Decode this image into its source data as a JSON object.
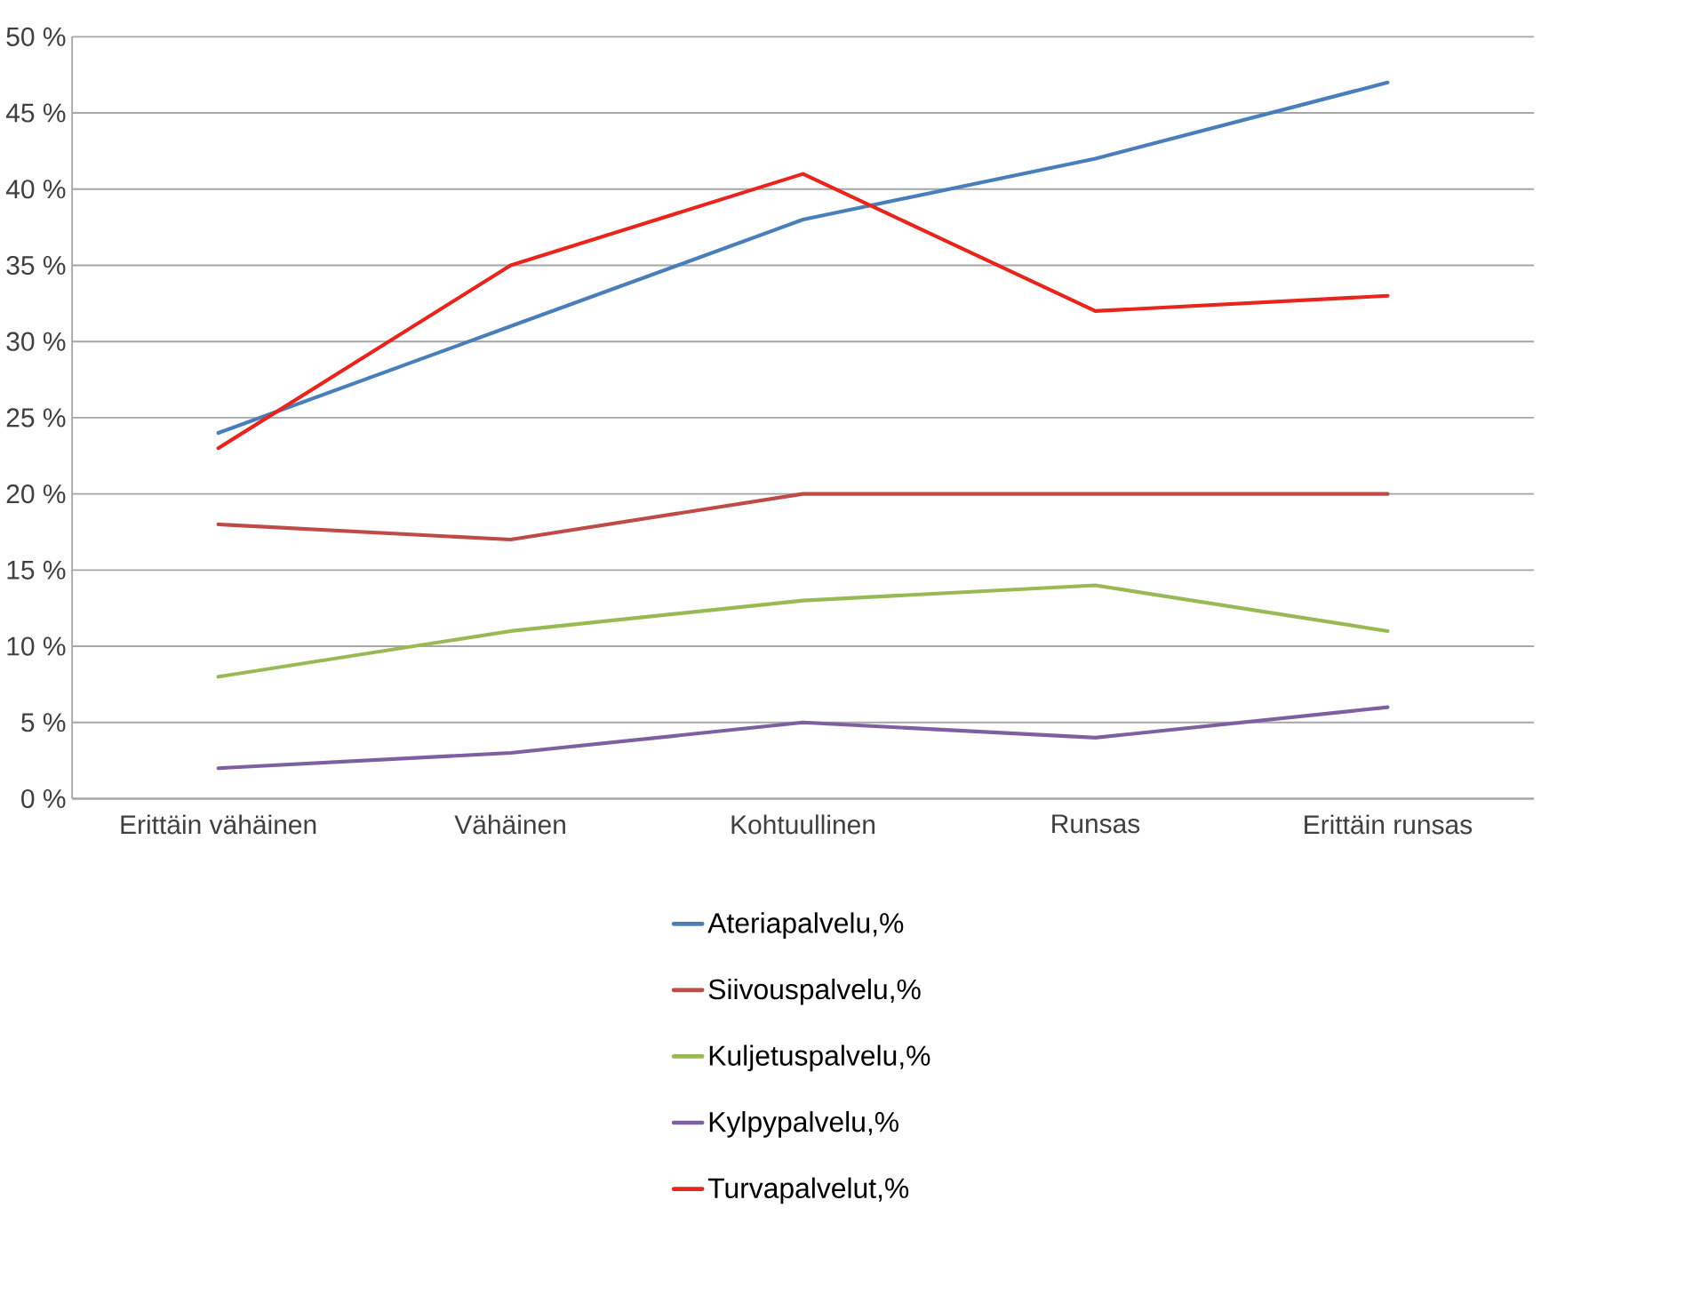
{
  "chart_data": {
    "type": "line",
    "categories": [
      "Erittäin vähäinen",
      "Vähäinen",
      "Kohtuullinen",
      "Runsas",
      "Erittäin runsas"
    ],
    "series": [
      {
        "name": "Ateriapalvelu,%",
        "color": "#4a7ebb",
        "values": [
          24,
          31,
          38,
          42,
          47
        ]
      },
      {
        "name": "Siivouspalvelu,%",
        "color": "#be4b48",
        "values": [
          18,
          17,
          20,
          20,
          20
        ]
      },
      {
        "name": "Kuljetuspalvelu,%",
        "color": "#98b954",
        "values": [
          8,
          11,
          13,
          14,
          11
        ]
      },
      {
        "name": "Kylpypalvelu,%",
        "color": "#7d60a0",
        "values": [
          2,
          3,
          5,
          4,
          6
        ]
      },
      {
        "name": "Turvapalvelut,%",
        "color": "#e8251c",
        "values": [
          23,
          35,
          41,
          32,
          33
        ]
      }
    ],
    "ylim": [
      0,
      50
    ],
    "yticks": [
      {
        "value": 0,
        "label": "0 %"
      },
      {
        "value": 5,
        "label": "5 %"
      },
      {
        "value": 10,
        "label": "10 %"
      },
      {
        "value": 15,
        "label": "15 %"
      },
      {
        "value": 20,
        "label": "20 %"
      },
      {
        "value": 25,
        "label": "25 %"
      },
      {
        "value": 30,
        "label": "30 %"
      },
      {
        "value": 35,
        "label": "35 %"
      },
      {
        "value": 40,
        "label": "40 %"
      },
      {
        "value": 45,
        "label": "45 %"
      },
      {
        "value": 50,
        "label": "50 %"
      }
    ],
    "grid": "y",
    "legend": "bottom",
    "marker": "none",
    "line_style": "solid"
  }
}
